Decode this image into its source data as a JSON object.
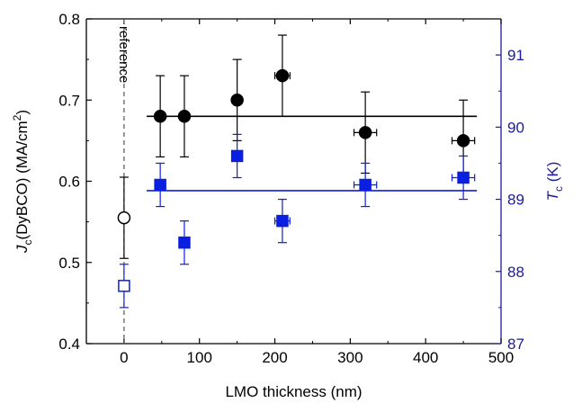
{
  "chart_data": {
    "type": "scatter",
    "xlabel": "LMO thickness (nm)",
    "ylabel_left": {
      "main": "J",
      "sub": "c",
      "rest": "(DyBCO) (MA/cm",
      "sup": "2",
      "end": ")"
    },
    "ylabel_right": {
      "main": "T",
      "sub": "c",
      "rest": " (K)"
    },
    "xlim": [
      -50,
      500
    ],
    "ylim_left": [
      0.4,
      0.8
    ],
    "ylim_right": [
      87,
      91.5
    ],
    "x_ticks": [
      0,
      100,
      200,
      300,
      400,
      500
    ],
    "y_ticks_left": [
      0.4,
      0.5,
      0.6,
      0.7,
      0.8
    ],
    "y_ticks_right": [
      87,
      88,
      89,
      90,
      91
    ],
    "y_tick_labels_left": [
      "0.4",
      "0.5",
      "0.6",
      "0.7",
      "0.8"
    ],
    "y_tick_labels_right": [
      "87",
      "88",
      "89",
      "90",
      "91"
    ],
    "reference_line": {
      "x": 0,
      "label": "reference"
    },
    "series": [
      {
        "axis": "left",
        "color": "#000000",
        "marker": "circle",
        "points": [
          {
            "x": 0,
            "y": 0.555,
            "yerr": 0.05,
            "xerr": 0,
            "filled": false
          },
          {
            "x": 48,
            "y": 0.68,
            "yerr": 0.05,
            "xerr": 0,
            "filled": true
          },
          {
            "x": 80,
            "y": 0.68,
            "yerr": 0.05,
            "xerr": 0,
            "filled": true
          },
          {
            "x": 150,
            "y": 0.7,
            "yerr": 0.05,
            "xerr": 0,
            "filled": true
          },
          {
            "x": 210,
            "y": 0.73,
            "yerr": 0.05,
            "xerr": 10,
            "filled": true
          },
          {
            "x": 320,
            "y": 0.66,
            "yerr": 0.05,
            "xerr": 15,
            "filled": true
          },
          {
            "x": 450,
            "y": 0.65,
            "yerr": 0.05,
            "xerr": 15,
            "filled": true
          }
        ],
        "mean_line": {
          "value": 0.68,
          "from": 30,
          "to": 468
        }
      },
      {
        "axis": "right",
        "color": "#0a1fe0",
        "marker": "square",
        "points": [
          {
            "x": 0,
            "y": 87.8,
            "yerr": 0.3,
            "xerr": 0,
            "filled": false
          },
          {
            "x": 48,
            "y": 89.2,
            "yerr": 0.3,
            "xerr": 0,
            "filled": true
          },
          {
            "x": 80,
            "y": 88.4,
            "yerr": 0.3,
            "xerr": 0,
            "filled": true
          },
          {
            "x": 150,
            "y": 89.6,
            "yerr": 0.3,
            "xerr": 0,
            "filled": true
          },
          {
            "x": 210,
            "y": 88.7,
            "yerr": 0.3,
            "xerr": 10,
            "filled": true
          },
          {
            "x": 320,
            "y": 89.2,
            "yerr": 0.3,
            "xerr": 15,
            "filled": true
          },
          {
            "x": 450,
            "y": 89.3,
            "yerr": 0.3,
            "xerr": 15,
            "filled": true
          }
        ],
        "mean_line": {
          "value": 89.12,
          "from": 30,
          "to": 468
        }
      }
    ],
    "colors": {
      "left_axis": "#000000",
      "right_axis": "#1a1aa0",
      "blue_series": "#0a1fe0"
    }
  }
}
